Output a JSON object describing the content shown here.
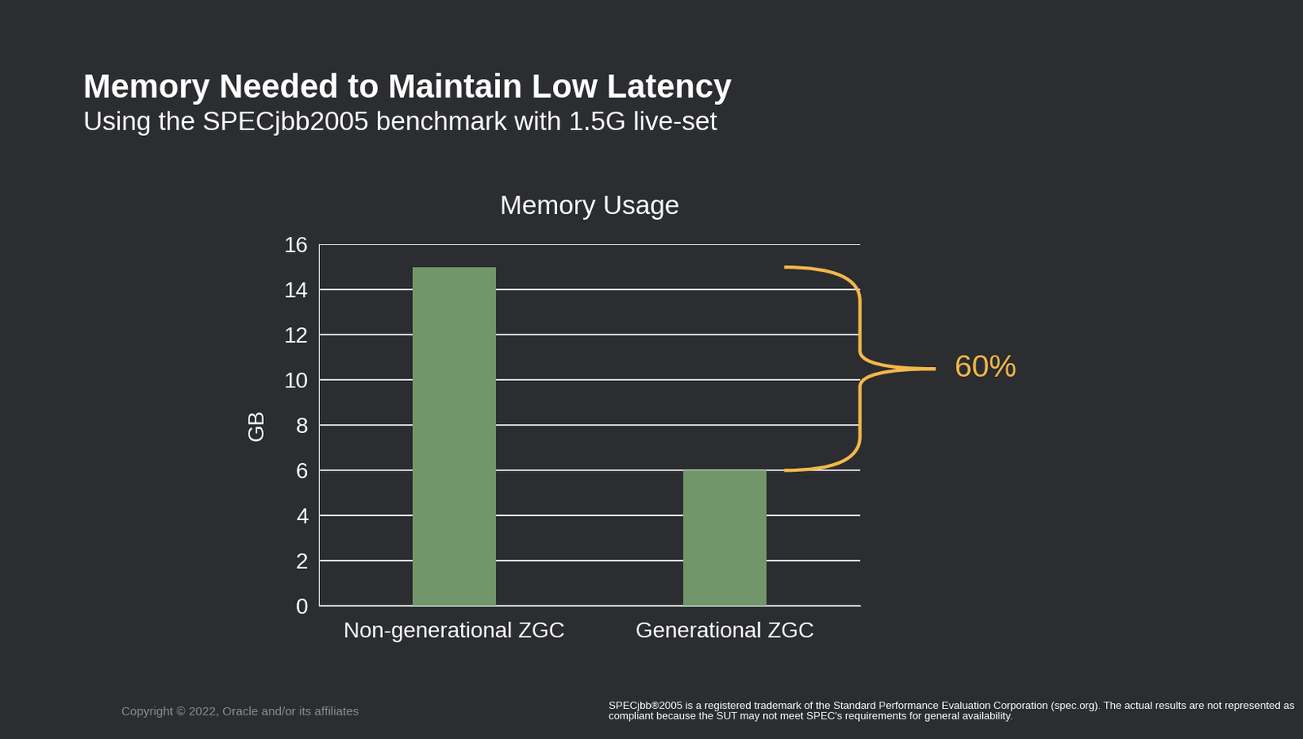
{
  "chart_data": {
    "type": "bar",
    "title": "Memory Needed to Maintain Low Latency",
    "subtitle": "Using the SPECjbb2005 benchmark with 1.5G live-set",
    "chart_title": "Memory Usage",
    "y_label": "GB",
    "categories": [
      "Non-generational ZGC",
      "Generational ZGC"
    ],
    "values": [
      15,
      6
    ],
    "color": "#70966a",
    "ylim": [
      0,
      16
    ],
    "yticks": [
      0,
      2,
      4,
      6,
      8,
      10,
      12,
      14,
      16
    ],
    "grid": true,
    "annotation": "60%",
    "copyright": "Copyright © 2022, Oracle and/or its affiliates",
    "footnote": "SPECjbb®2005 is a registered trademark of the Standard Performance Evaluation Corporation (spec.org). The actual results are not represented as compliant because the SUT may not meet SPEC's requirements for general availability."
  }
}
